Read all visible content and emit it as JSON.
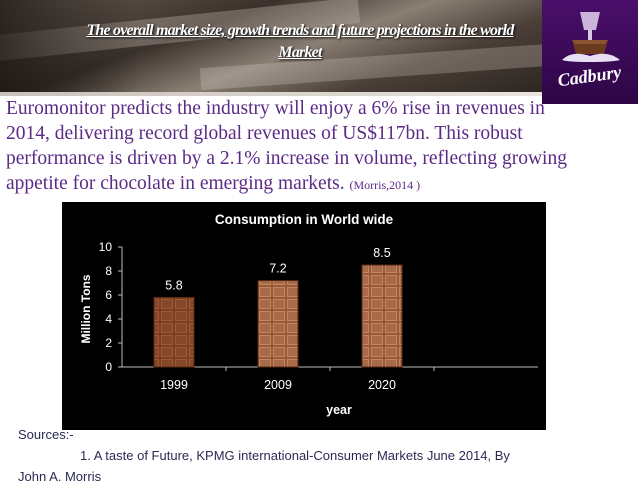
{
  "banner": {
    "title": "The overall market size, growth trends and future projections in the world Market"
  },
  "logo": {
    "brand": "Cadbury"
  },
  "paragraph": {
    "text": "Euromonitor predicts the industry will enjoy a 6% rise in revenues in 2014, delivering record global revenues of US$117bn. This robust performance is driven by a 2.1% increase in volume, reflecting growing appetite for chocolate in emerging markets.",
    "citation": "(Morris,2014 )"
  },
  "colors": {
    "text_purple": "#5b2a86",
    "bar_fill": "#8c4a2b",
    "chart_bg": "#000000"
  },
  "chart_data": {
    "type": "bar",
    "title": "Consumption in World wide",
    "categories": [
      "1999",
      "2009",
      "2020"
    ],
    "values": [
      5.8,
      7.2,
      8.5
    ],
    "value_labels": [
      "5.8",
      "7.2",
      "8.5"
    ],
    "xlabel": "year",
    "ylabel": "Million Tons",
    "ylim": [
      0,
      10
    ],
    "yticks": [
      0,
      2,
      4,
      6,
      8,
      10
    ],
    "ytick_labels": [
      "0",
      "2",
      "4",
      "6",
      "8",
      "10"
    ],
    "grid": false
  },
  "sources": {
    "heading": "Sources:-",
    "line1": "1. A taste of Future, KPMG international-Consumer Markets June 2014, By",
    "line2": "John A. Morris"
  }
}
